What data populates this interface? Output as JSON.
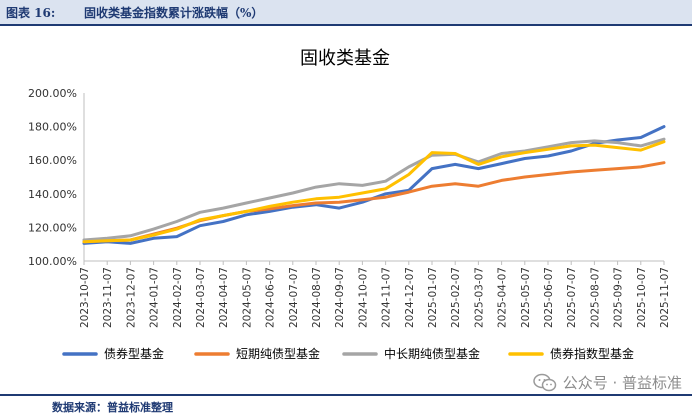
{
  "header": {
    "figure_no": "图表 16:",
    "figure_title": "固收类基金指数累计涨跌幅（%）"
  },
  "footer": {
    "source": "数据来源：普益标准整理"
  },
  "watermark": {
    "text": "公众号 · 普益标准",
    "icon": "wechat-icon"
  },
  "chart_data": {
    "type": "line",
    "title": "固收类基金",
    "xlabel": "",
    "ylabel": "",
    "ylim": [
      100,
      200
    ],
    "yticks": [
      "100.00%",
      "120.00%",
      "140.00%",
      "160.00%",
      "180.00%",
      "200.00%"
    ],
    "grid": false,
    "legend_position": "bottom",
    "categories": [
      "2023-10-07",
      "2023-11-07",
      "2023-12-07",
      "2024-01-07",
      "2024-02-07",
      "2024-03-07",
      "2024-04-07",
      "2024-05-07",
      "2024-06-07",
      "2024-07-07",
      "2024-08-07",
      "2024-09-07",
      "2024-10-07",
      "2024-11-07",
      "2024-12-07",
      "2025-01-07",
      "2025-02-07",
      "2025-03-07",
      "2025-04-07",
      "2025-05-07",
      "2025-06-07",
      "2025-07-07",
      "2025-08-07",
      "2025-09-07",
      "2025-10-07",
      "2025-11-07"
    ],
    "series": [
      {
        "name": "债券型基金",
        "color": "#4472c4",
        "values": [
          110.5,
          111.5,
          110.5,
          113.5,
          114.5,
          121.0,
          123.5,
          127.5,
          129.5,
          132.0,
          133.5,
          131.5,
          135.0,
          140.0,
          142.0,
          155.0,
          157.5,
          155.0,
          158.0,
          161.0,
          162.5,
          165.5,
          170.0,
          172.0,
          173.5,
          180.0
        ]
      },
      {
        "name": "短期纯债型基金",
        "color": "#ed7d31",
        "values": [
          111.5,
          112.0,
          112.5,
          116.0,
          119.5,
          124.0,
          127.0,
          129.5,
          131.0,
          133.0,
          134.5,
          135.0,
          136.5,
          138.0,
          141.0,
          144.5,
          146.0,
          144.5,
          148.0,
          150.0,
          151.5,
          153.0,
          154.0,
          155.0,
          156.0,
          158.5
        ]
      },
      {
        "name": "中长期纯债型基金",
        "color": "#a5a5a5",
        "values": [
          112.5,
          113.5,
          115.0,
          119.0,
          123.5,
          129.0,
          131.5,
          134.5,
          137.5,
          140.5,
          144.0,
          146.0,
          145.0,
          147.5,
          156.0,
          163.0,
          163.5,
          159.0,
          164.0,
          165.5,
          168.0,
          170.5,
          171.5,
          170.5,
          168.5,
          172.5
        ]
      },
      {
        "name": "债券指数型基金",
        "color": "#ffc000",
        "values": [
          111.5,
          112.0,
          112.5,
          115.5,
          119.0,
          124.5,
          127.0,
          129.5,
          132.5,
          135.0,
          137.0,
          138.0,
          140.5,
          143.0,
          151.5,
          164.5,
          164.0,
          157.5,
          162.0,
          164.5,
          166.5,
          168.5,
          169.0,
          167.5,
          166.0,
          171.0
        ]
      }
    ]
  }
}
